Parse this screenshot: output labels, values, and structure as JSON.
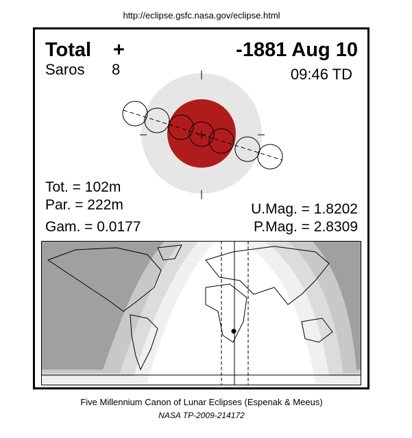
{
  "header": {
    "url": "http://eclipse.gsfc.nasa.gov/eclipse.html"
  },
  "eclipse": {
    "type": "Total",
    "symbol": "+",
    "date": "-1881 Aug 10",
    "saros_label": "Saros",
    "saros": "8",
    "time": "09:46 TD",
    "tot": "Tot. = 102m",
    "par": "Par. = 222m",
    "gam": "Gam. = 0.0177",
    "umag": "U.Mag. = 1.8202",
    "pmag": "P.Mag. = 2.8309"
  },
  "footer": {
    "line1": "Five Millennium Canon of Lunar Eclipses (Espenak & Meeus)",
    "line2": "NASA TP-2009-214172"
  }
}
